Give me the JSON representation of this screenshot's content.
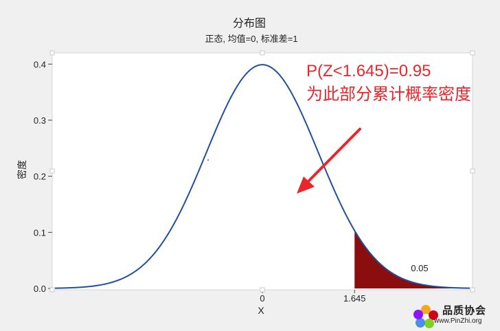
{
  "colors": {
    "curve": "#1f4e9a",
    "fill": "#8b0e0e",
    "annotation": "#e8262b",
    "arrow": "#e8262b",
    "plot_bg": "#ffffff",
    "page_bg": "#f0f0f0"
  },
  "annotation": {
    "line1": "P(Z<1.645)=0.95",
    "line2": "为此部分累计概率密度"
  },
  "watermark": {
    "site_name": "品质协会",
    "url": "www.PinZhi.org",
    "icon": "flower-logo-icon"
  },
  "chart_data": {
    "type": "area",
    "title": "分布图",
    "subtitle": "正态, 均值=0, 标准差=1",
    "xlabel": "X",
    "ylabel": "密度",
    "distribution": {
      "family": "normal",
      "mean": 0,
      "sd": 1
    },
    "xlim": [
      -3.7,
      3.7
    ],
    "ylim": [
      0,
      0.42
    ],
    "yticks": [
      "0.0",
      "0.1",
      "0.2",
      "0.3",
      "0.4"
    ],
    "xticks": [
      {
        "value": 0,
        "label": "0"
      },
      {
        "value": 1.645,
        "label": "1.645"
      }
    ],
    "shaded_region": {
      "from": 1.645,
      "to": 3.7,
      "label": "0.05"
    },
    "grid": false,
    "legend": "none"
  }
}
